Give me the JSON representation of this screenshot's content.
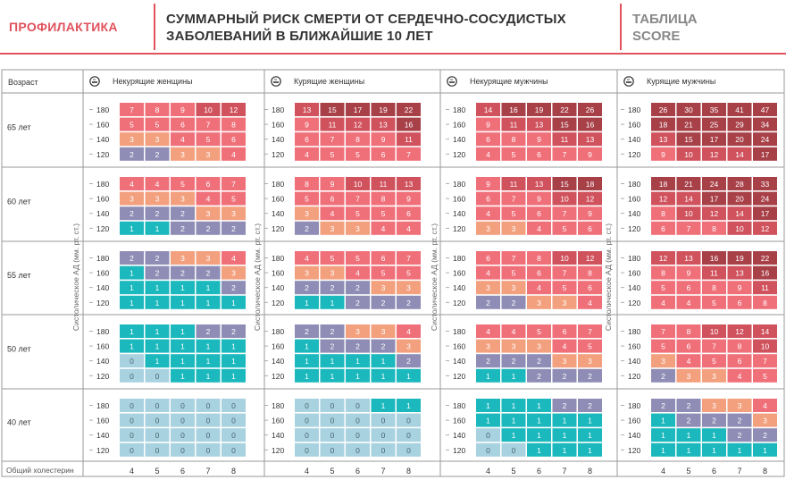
{
  "header": {
    "section": "ПРОФИЛАКТИКА",
    "title_line1": "СУММАРНЫЙ РИСК СМЕРТИ ОТ СЕРДЕЧНО-СОСУДИСТЫХ",
    "title_line2": "ЗАБОЛЕВАНИЙ В БЛИЖАЙШИЕ 10 ЛЕТ",
    "table_line1": "ТАБЛИЦА",
    "table_line2": "SCORE"
  },
  "colors": {
    "0": "#a8d2e0",
    "1": "#1bb8bd",
    "2": "#8f8db5",
    "3": "#f3a07e",
    "4": "#f0707a",
    "low_red": "#f0707a",
    "mid_red": "#d0525d",
    "high_red": "#a84048"
  },
  "chart_data": {
    "type": "heatmap",
    "row_header": "Возраст",
    "x_axis_label": "Общий холестерин",
    "y_axis_label": "Систолическое АД (мм. рт. ст.)",
    "cholesterol": [
      4,
      5,
      6,
      7,
      8
    ],
    "bp": [
      180,
      160,
      140,
      120
    ],
    "ages": [
      "65 лет",
      "60 лет",
      "55 лет",
      "50 лет",
      "40 лет"
    ],
    "groups": [
      {
        "name": "Некурящие женщины",
        "values": [
          [
            [
              7,
              8,
              9,
              10,
              12
            ],
            [
              5,
              5,
              6,
              7,
              8
            ],
            [
              3,
              3,
              4,
              5,
              6
            ],
            [
              2,
              2,
              3,
              3,
              4
            ]
          ],
          [
            [
              4,
              4,
              5,
              6,
              7
            ],
            [
              3,
              3,
              3,
              4,
              5
            ],
            [
              2,
              2,
              2,
              3,
              3
            ],
            [
              1,
              1,
              2,
              2,
              2
            ]
          ],
          [
            [
              2,
              2,
              3,
              3,
              4
            ],
            [
              1,
              2,
              2,
              2,
              3
            ],
            [
              1,
              1,
              1,
              1,
              2
            ],
            [
              1,
              1,
              1,
              1,
              1
            ]
          ],
          [
            [
              1,
              1,
              1,
              2,
              2
            ],
            [
              1,
              1,
              1,
              1,
              1
            ],
            [
              0,
              1,
              1,
              1,
              1
            ],
            [
              0,
              0,
              1,
              1,
              1
            ]
          ],
          [
            [
              0,
              0,
              0,
              0,
              0
            ],
            [
              0,
              0,
              0,
              0,
              0
            ],
            [
              0,
              0,
              0,
              0,
              0
            ],
            [
              0,
              0,
              0,
              0,
              0
            ]
          ]
        ]
      },
      {
        "name": "Курящие женщины",
        "values": [
          [
            [
              13,
              15,
              17,
              19,
              22
            ],
            [
              9,
              11,
              12,
              13,
              16
            ],
            [
              6,
              7,
              8,
              9,
              11
            ],
            [
              4,
              5,
              5,
              6,
              7
            ]
          ],
          [
            [
              8,
              9,
              10,
              11,
              13
            ],
            [
              5,
              6,
              7,
              8,
              9
            ],
            [
              3,
              4,
              5,
              5,
              6
            ],
            [
              2,
              3,
              3,
              4,
              4
            ]
          ],
          [
            [
              4,
              5,
              5,
              6,
              7
            ],
            [
              3,
              3,
              4,
              5,
              5
            ],
            [
              2,
              2,
              2,
              3,
              3
            ],
            [
              1,
              1,
              2,
              2,
              2
            ]
          ],
          [
            [
              2,
              2,
              3,
              3,
              4
            ],
            [
              1,
              2,
              2,
              2,
              3
            ],
            [
              1,
              1,
              1,
              1,
              2
            ],
            [
              1,
              1,
              1,
              1,
              1
            ]
          ],
          [
            [
              0,
              0,
              0,
              1,
              1
            ],
            [
              0,
              0,
              0,
              0,
              0
            ],
            [
              0,
              0,
              0,
              0,
              0
            ],
            [
              0,
              0,
              0,
              0,
              0
            ]
          ]
        ]
      },
      {
        "name": "Некурящие мужчины",
        "values": [
          [
            [
              14,
              16,
              19,
              22,
              26
            ],
            [
              9,
              11,
              13,
              15,
              16
            ],
            [
              6,
              8,
              9,
              11,
              13
            ],
            [
              4,
              5,
              6,
              7,
              9
            ]
          ],
          [
            [
              9,
              11,
              13,
              15,
              18
            ],
            [
              6,
              7,
              9,
              10,
              12
            ],
            [
              4,
              5,
              6,
              7,
              9
            ],
            [
              3,
              3,
              4,
              5,
              6
            ]
          ],
          [
            [
              6,
              7,
              8,
              10,
              12
            ],
            [
              4,
              5,
              6,
              7,
              8
            ],
            [
              3,
              3,
              4,
              5,
              6
            ],
            [
              2,
              2,
              3,
              3,
              4
            ]
          ],
          [
            [
              4,
              4,
              5,
              6,
              7
            ],
            [
              3,
              3,
              3,
              4,
              5
            ],
            [
              2,
              2,
              2,
              3,
              3
            ],
            [
              1,
              1,
              2,
              2,
              2
            ]
          ],
          [
            [
              1,
              1,
              1,
              2,
              2
            ],
            [
              1,
              1,
              1,
              1,
              1
            ],
            [
              0,
              1,
              1,
              1,
              1
            ],
            [
              0,
              0,
              1,
              1,
              1
            ]
          ]
        ]
      },
      {
        "name": "Курящие мужчины",
        "values": [
          [
            [
              26,
              30,
              35,
              41,
              47
            ],
            [
              18,
              21,
              25,
              29,
              34
            ],
            [
              13,
              15,
              17,
              20,
              24
            ],
            [
              9,
              10,
              12,
              14,
              17
            ]
          ],
          [
            [
              18,
              21,
              24,
              28,
              33
            ],
            [
              12,
              14,
              17,
              20,
              24
            ],
            [
              8,
              10,
              12,
              14,
              17
            ],
            [
              6,
              7,
              8,
              10,
              12
            ]
          ],
          [
            [
              12,
              13,
              16,
              19,
              22
            ],
            [
              8,
              9,
              11,
              13,
              16
            ],
            [
              5,
              6,
              8,
              9,
              11
            ],
            [
              4,
              4,
              5,
              6,
              8
            ]
          ],
          [
            [
              7,
              8,
              10,
              12,
              14
            ],
            [
              5,
              6,
              7,
              8,
              10
            ],
            [
              3,
              4,
              5,
              6,
              7
            ],
            [
              2,
              3,
              3,
              4,
              5
            ]
          ],
          [
            [
              2,
              2,
              3,
              3,
              4
            ],
            [
              1,
              2,
              2,
              2,
              3
            ],
            [
              1,
              1,
              1,
              2,
              2
            ],
            [
              1,
              1,
              1,
              1,
              1
            ]
          ]
        ]
      }
    ]
  }
}
